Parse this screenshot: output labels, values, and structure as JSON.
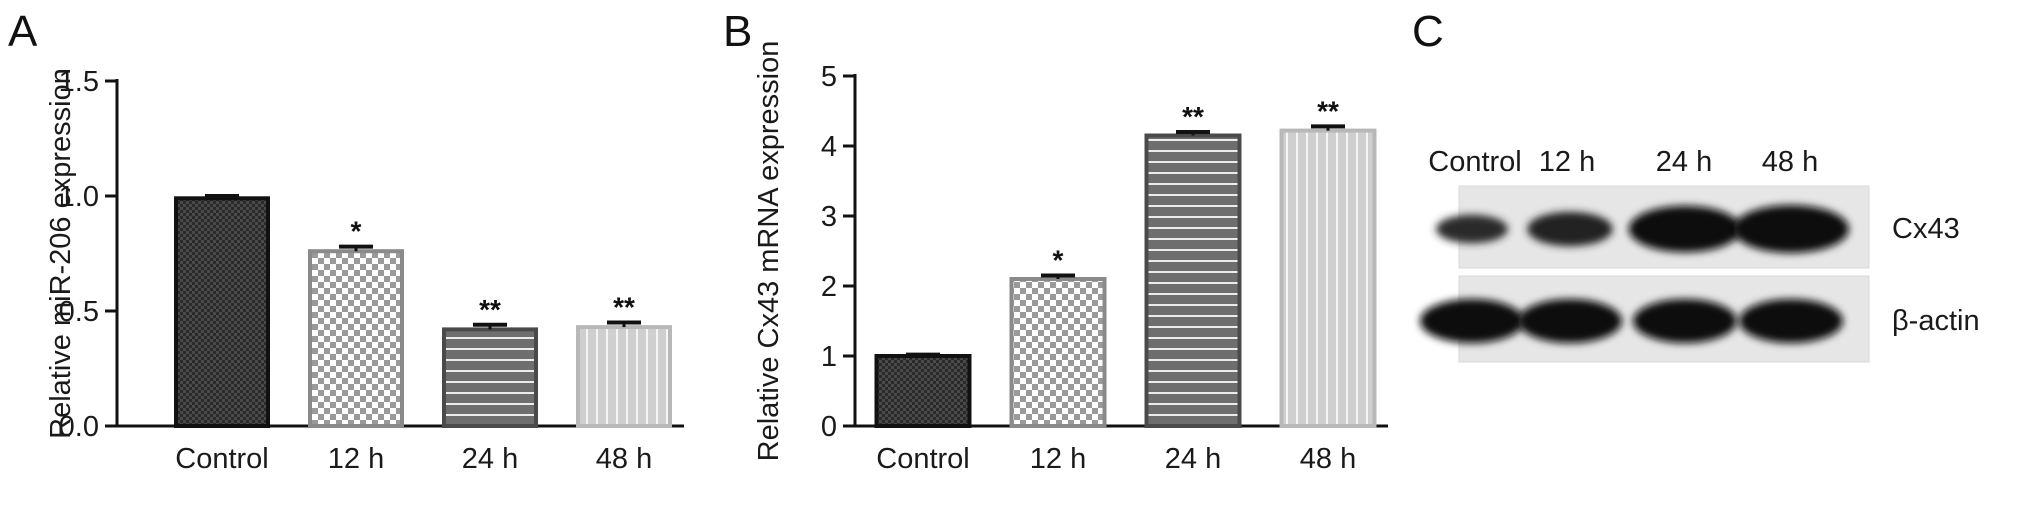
{
  "panels": {
    "a": "A",
    "b": "B",
    "c": "C"
  },
  "chart_data": [
    {
      "type": "bar",
      "ylabel": "Relative miR-206 expression",
      "categories": [
        "Control",
        "12 h",
        "24 h",
        "48 h"
      ],
      "values": [
        0.99,
        0.76,
        0.42,
        0.43
      ],
      "errors": [
        0.01,
        0.02,
        0.02,
        0.02
      ],
      "significance": [
        "",
        "*",
        "**",
        "**"
      ],
      "ylim": [
        0,
        1.5
      ],
      "yticks": [
        "0.0",
        "0.5",
        "1.0",
        "1.5"
      ]
    },
    {
      "type": "bar",
      "ylabel": "Relative Cx43 mRNA expression",
      "categories": [
        "Control",
        "12 h",
        "24 h",
        "48 h"
      ],
      "values": [
        1.0,
        2.1,
        4.15,
        4.22
      ],
      "errors": [
        0.02,
        0.05,
        0.05,
        0.06
      ],
      "significance": [
        "",
        "*",
        "**",
        "**"
      ],
      "ylim": [
        0,
        5
      ],
      "yticks": [
        "0",
        "1",
        "2",
        "3",
        "4",
        "5"
      ]
    }
  ],
  "blot": {
    "lanes": [
      "Control",
      "12 h",
      "24 h",
      "48 h"
    ],
    "bands": [
      {
        "label": "Cx43",
        "intensity": [
          0.35,
          0.55,
          0.95,
          1.0
        ]
      },
      {
        "label": "β-actin",
        "intensity": [
          1.0,
          1.0,
          1.0,
          1.0
        ]
      }
    ]
  }
}
